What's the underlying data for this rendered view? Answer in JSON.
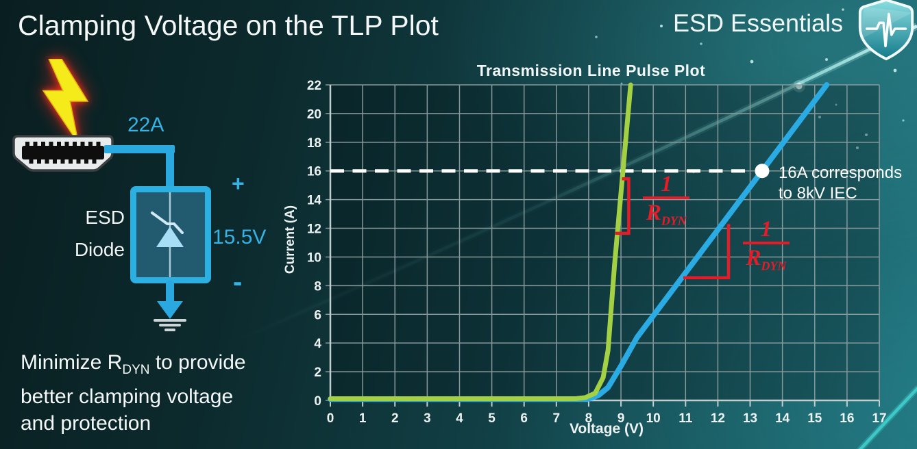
{
  "slide": {
    "title": "Clamping Voltage on the TLP Plot",
    "brand": "ESD Essentials"
  },
  "circuit": {
    "surge_current": "22A",
    "clamp_voltage": "15.5V",
    "polarity_plus": "+",
    "polarity_minus": "-",
    "component_label_line1": "ESD",
    "component_label_line2": "Diode"
  },
  "note": {
    "line1_prefix": "Minimize R",
    "line1_sub": "DYN",
    "line1_suffix": " to provide",
    "line2": "better clamping voltage",
    "line3": "and protection"
  },
  "chart_data": {
    "type": "line",
    "title": "Transmission Line Pulse Plot",
    "xlabel": "Voltage (V)",
    "ylabel": "Current (A)",
    "xlim": [
      0,
      17
    ],
    "ylim": [
      0,
      22
    ],
    "x_ticks": [
      0,
      1,
      2,
      3,
      4,
      5,
      6,
      7,
      8,
      9,
      10,
      11,
      12,
      13,
      14,
      15,
      16,
      17
    ],
    "y_ticks": [
      0,
      2,
      4,
      6,
      8,
      10,
      12,
      14,
      16,
      18,
      20,
      22
    ],
    "grid": true,
    "series": [
      {
        "id": "blue-curve-high-rdyn",
        "color": "#2babe3",
        "width": 8,
        "points": [
          [
            0,
            0.08
          ],
          [
            7.95,
            0.08
          ],
          [
            8.3,
            0.35
          ],
          [
            8.6,
            0.9
          ],
          [
            9.0,
            2.4
          ],
          [
            9.5,
            4.4
          ],
          [
            15.37,
            22
          ]
        ]
      },
      {
        "id": "green-curve-low-rdyn",
        "color": "#a4d044",
        "width": 7,
        "points": [
          [
            0,
            0.12
          ],
          [
            7.6,
            0.12
          ],
          [
            7.9,
            0.2
          ],
          [
            8.2,
            0.5
          ],
          [
            8.45,
            1.6
          ],
          [
            8.6,
            3.5
          ],
          [
            8.8,
            9.4
          ],
          [
            9.3,
            22
          ]
        ]
      }
    ],
    "reference_line": {
      "y": 16,
      "color": "#ffffff",
      "style": "dashed"
    },
    "marker": {
      "x": 13.37,
      "y": 16,
      "color": "#ffffff",
      "label_line1": "16A corresponds",
      "label_line2": "to 8kV IEC"
    },
    "annotations": [
      {
        "id": "rdyn-slope-green",
        "numerator": "1",
        "denominator": "R",
        "denominator_sub": "DYN",
        "color": "#e51c28",
        "bracket": [
          [
            9.03,
            15.45
          ],
          [
            9.24,
            15.45
          ],
          [
            9.24,
            11.65
          ],
          [
            8.82,
            11.65
          ]
        ]
      },
      {
        "id": "rdyn-slope-blue",
        "numerator": "1",
        "denominator": "R",
        "denominator_sub": "DYN",
        "color": "#e51c28",
        "bracket": [
          [
            12.33,
            12.3
          ],
          [
            12.33,
            8.55
          ],
          [
            10.93,
            8.55
          ]
        ]
      }
    ]
  }
}
